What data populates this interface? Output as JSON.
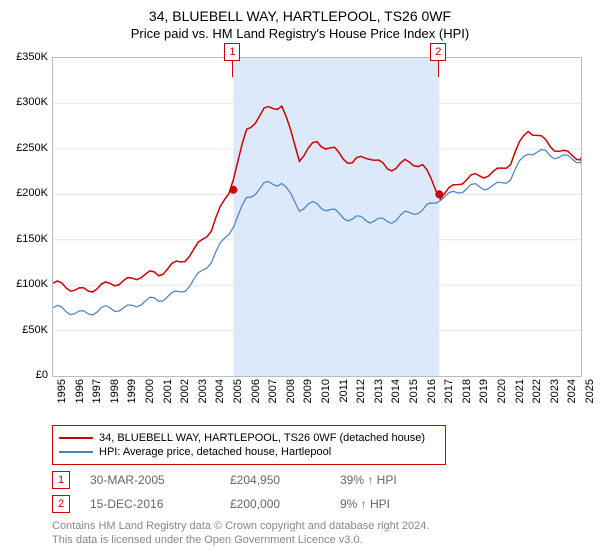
{
  "title": "34, BLUEBELL WAY, HARTLEPOOL, TS26 0WF",
  "subtitle": "Price paid vs. HM Land Registry's House Price Index (HPI)",
  "chart": {
    "type": "line",
    "background_color": "#ffffff",
    "grid_color": "#e6e6e6",
    "axis_color": "#bbbbbb",
    "x_years": [
      1995,
      1996,
      1997,
      1998,
      1999,
      2000,
      2001,
      2002,
      2003,
      2004,
      2005,
      2006,
      2007,
      2008,
      2009,
      2010,
      2011,
      2012,
      2013,
      2014,
      2015,
      2016,
      2017,
      2018,
      2019,
      2020,
      2021,
      2022,
      2023,
      2024,
      2025
    ],
    "ylim": [
      0,
      350000
    ],
    "ytick_step": 50000,
    "ytick_labels": [
      "£0",
      "£50K",
      "£100K",
      "£150K",
      "£200K",
      "£250K",
      "£300K",
      "£350K"
    ],
    "label_fontsize": 11,
    "highlight_band": {
      "x_from": 2005.25,
      "x_to": 2016.95,
      "fill": "#dbe9fb"
    },
    "series": [
      {
        "id": "property",
        "label": "34, BLUEBELL WAY, HARTLEPOOL, TS26 0WF (detached house)",
        "color": "#cc0000",
        "line_width": 1.5,
        "data_yearly": [
          100000,
          98000,
          95000,
          98000,
          105000,
          112000,
          110000,
          125000,
          138000,
          160000,
          205000,
          270000,
          290000,
          300000,
          240000,
          255000,
          250000,
          235000,
          240000,
          230000,
          235000,
          230000,
          200000,
          212000,
          218000,
          225000,
          235000,
          270000,
          260000,
          245000,
          238000
        ]
      },
      {
        "id": "hpi",
        "label": "HPI: Average price, detached house, Hartlepool",
        "color": "#4a7fc1",
        "line_width": 1.2,
        "data_yearly": [
          73000,
          72000,
          70000,
          72000,
          75000,
          82000,
          82000,
          92000,
          105000,
          125000,
          160000,
          195000,
          208000,
          215000,
          185000,
          187000,
          182000,
          173000,
          170000,
          172000,
          178000,
          180000,
          198000,
          203000,
          207000,
          210000,
          218000,
          245000,
          248000,
          240000,
          235000
        ]
      }
    ],
    "sale_markers": [
      {
        "badge": "1",
        "year": 2005.25,
        "value": 204950,
        "color": "#cc0000"
      },
      {
        "badge": "2",
        "year": 2016.95,
        "value": 200000,
        "color": "#cc0000"
      }
    ]
  },
  "legend": {
    "border_color": "#cc0000",
    "items": [
      {
        "color": "#cc0000",
        "label": "34, BLUEBELL WAY, HARTLEPOOL, TS26 0WF (detached house)"
      },
      {
        "color": "#4a7fc1",
        "label": "HPI: Average price, detached house, Hartlepool"
      }
    ]
  },
  "sales": [
    {
      "badge": "1",
      "date": "30-MAR-2005",
      "price": "£204,950",
      "vs_hpi": "39% ↑ HPI"
    },
    {
      "badge": "2",
      "date": "15-DEC-2016",
      "price": "£200,000",
      "vs_hpi": "9% ↑ HPI"
    }
  ],
  "attribution": {
    "line1": "Contains HM Land Registry data © Crown copyright and database right 2024.",
    "line2": "This data is licensed under the Open Government Licence v3.0."
  },
  "colors": {
    "text_muted": "#888888",
    "sale_text": "#666666"
  }
}
